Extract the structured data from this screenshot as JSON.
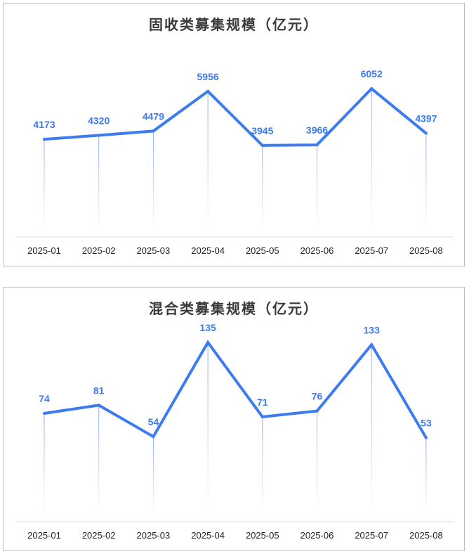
{
  "chart_data": [
    {
      "type": "line",
      "title": "固收类募集规模（亿元）",
      "categories": [
        "2025-01",
        "2025-02",
        "2025-03",
        "2025-04",
        "2025-05",
        "2025-06",
        "2025-07",
        "2025-08"
      ],
      "values": [
        4173,
        4320,
        4479,
        5956,
        3945,
        3966,
        6052,
        4397
      ],
      "xlabel": "",
      "ylabel": "",
      "ylim": [
        0,
        6500
      ],
      "grid": false,
      "data_labels": true,
      "color": "#3d7bf0"
    },
    {
      "type": "line",
      "title": "混合类募集规模（亿元）",
      "categories": [
        "2025-01",
        "2025-02",
        "2025-03",
        "2025-04",
        "2025-05",
        "2025-06",
        "2025-07",
        "2025-08"
      ],
      "values": [
        74,
        81,
        54,
        135,
        71,
        76,
        133,
        53
      ],
      "xlabel": "",
      "ylabel": "",
      "ylim": [
        -10,
        135
      ],
      "grid": false,
      "data_labels": true,
      "color": "#3d7bf0"
    }
  ]
}
